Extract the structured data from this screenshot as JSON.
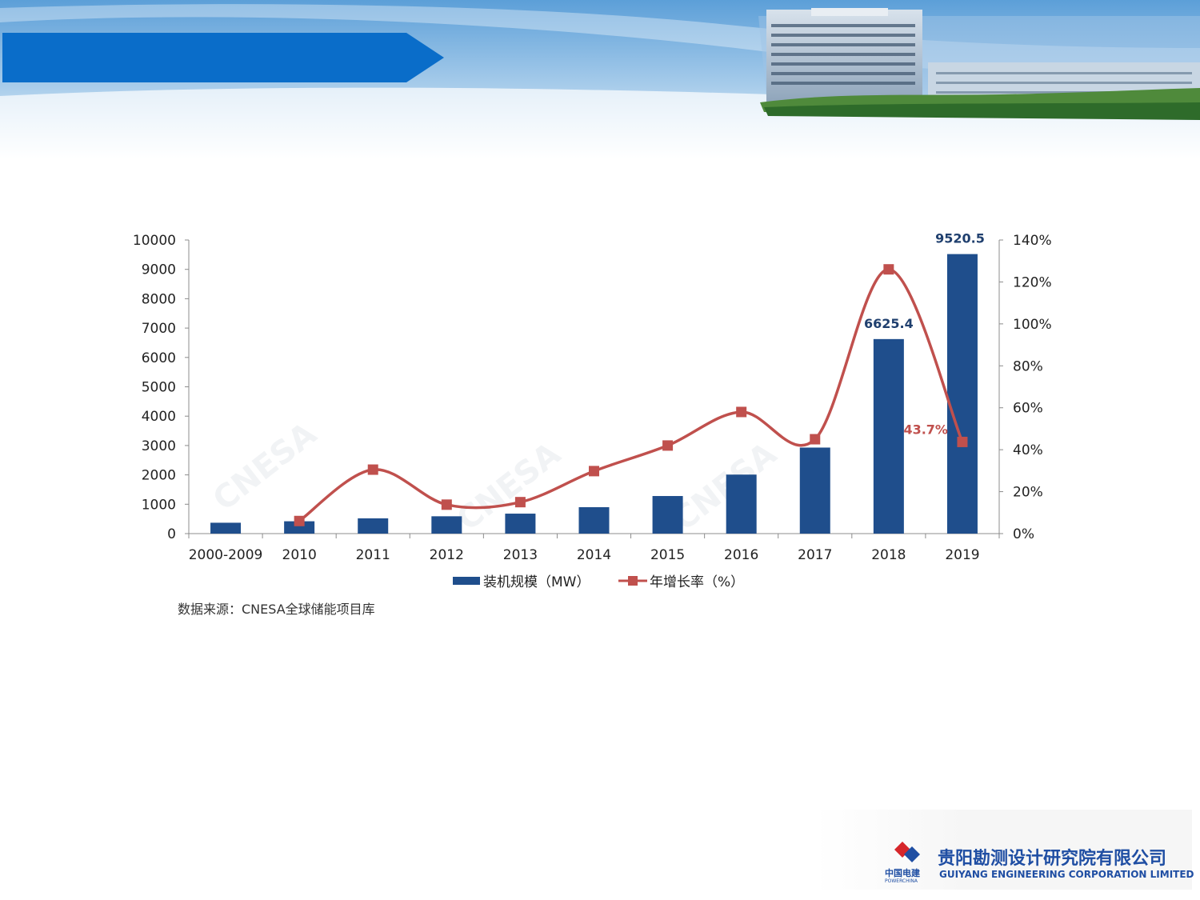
{
  "chart_data": {
    "type": "bar+line",
    "categories": [
      "2000-2009",
      "2010",
      "2011",
      "2012",
      "2013",
      "2014",
      "2015",
      "2016",
      "2017",
      "2018",
      "2019"
    ],
    "series": [
      {
        "name": "装机规模（MW）",
        "type": "bar",
        "axis": "left",
        "color": "#1f4e8c",
        "values": [
          370,
          420,
          520,
          590,
          680,
          900,
          1280,
          2010,
          2930,
          6625.4,
          9520.5
        ]
      },
      {
        "name": "年增长率（%）",
        "type": "line",
        "axis": "right",
        "color": "#c0504d",
        "values": [
          null,
          6,
          30.5,
          13.8,
          15,
          29.8,
          42,
          58,
          45,
          126,
          43.7
        ]
      }
    ],
    "y_left": {
      "min": 0,
      "max": 10000,
      "ticks": [
        "0",
        "1000",
        "2000",
        "3000",
        "4000",
        "5000",
        "6000",
        "7000",
        "8000",
        "9000",
        "10000"
      ]
    },
    "y_right": {
      "min": 0,
      "max": 140,
      "ticks": [
        "0%",
        "20%",
        "40%",
        "60%",
        "80%",
        "100%",
        "120%",
        "140%"
      ]
    },
    "data_labels": [
      {
        "series": 0,
        "index": 9,
        "text": "6625.4"
      },
      {
        "series": 0,
        "index": 10,
        "text": "9520.5"
      },
      {
        "series": 1,
        "index": 10,
        "text": "43.7%"
      }
    ],
    "legend_position": "bottom",
    "grid": false,
    "source": "数据来源：CNESA全球储能项目库"
  },
  "footer": {
    "company_cn": "贵阳勘测设计研究院有限公司",
    "company_en": "GUIYANG ENGINEERING CORPORATION LIMITED",
    "brand_cn": "中国电建",
    "brand_en": "POWERCHINA"
  }
}
